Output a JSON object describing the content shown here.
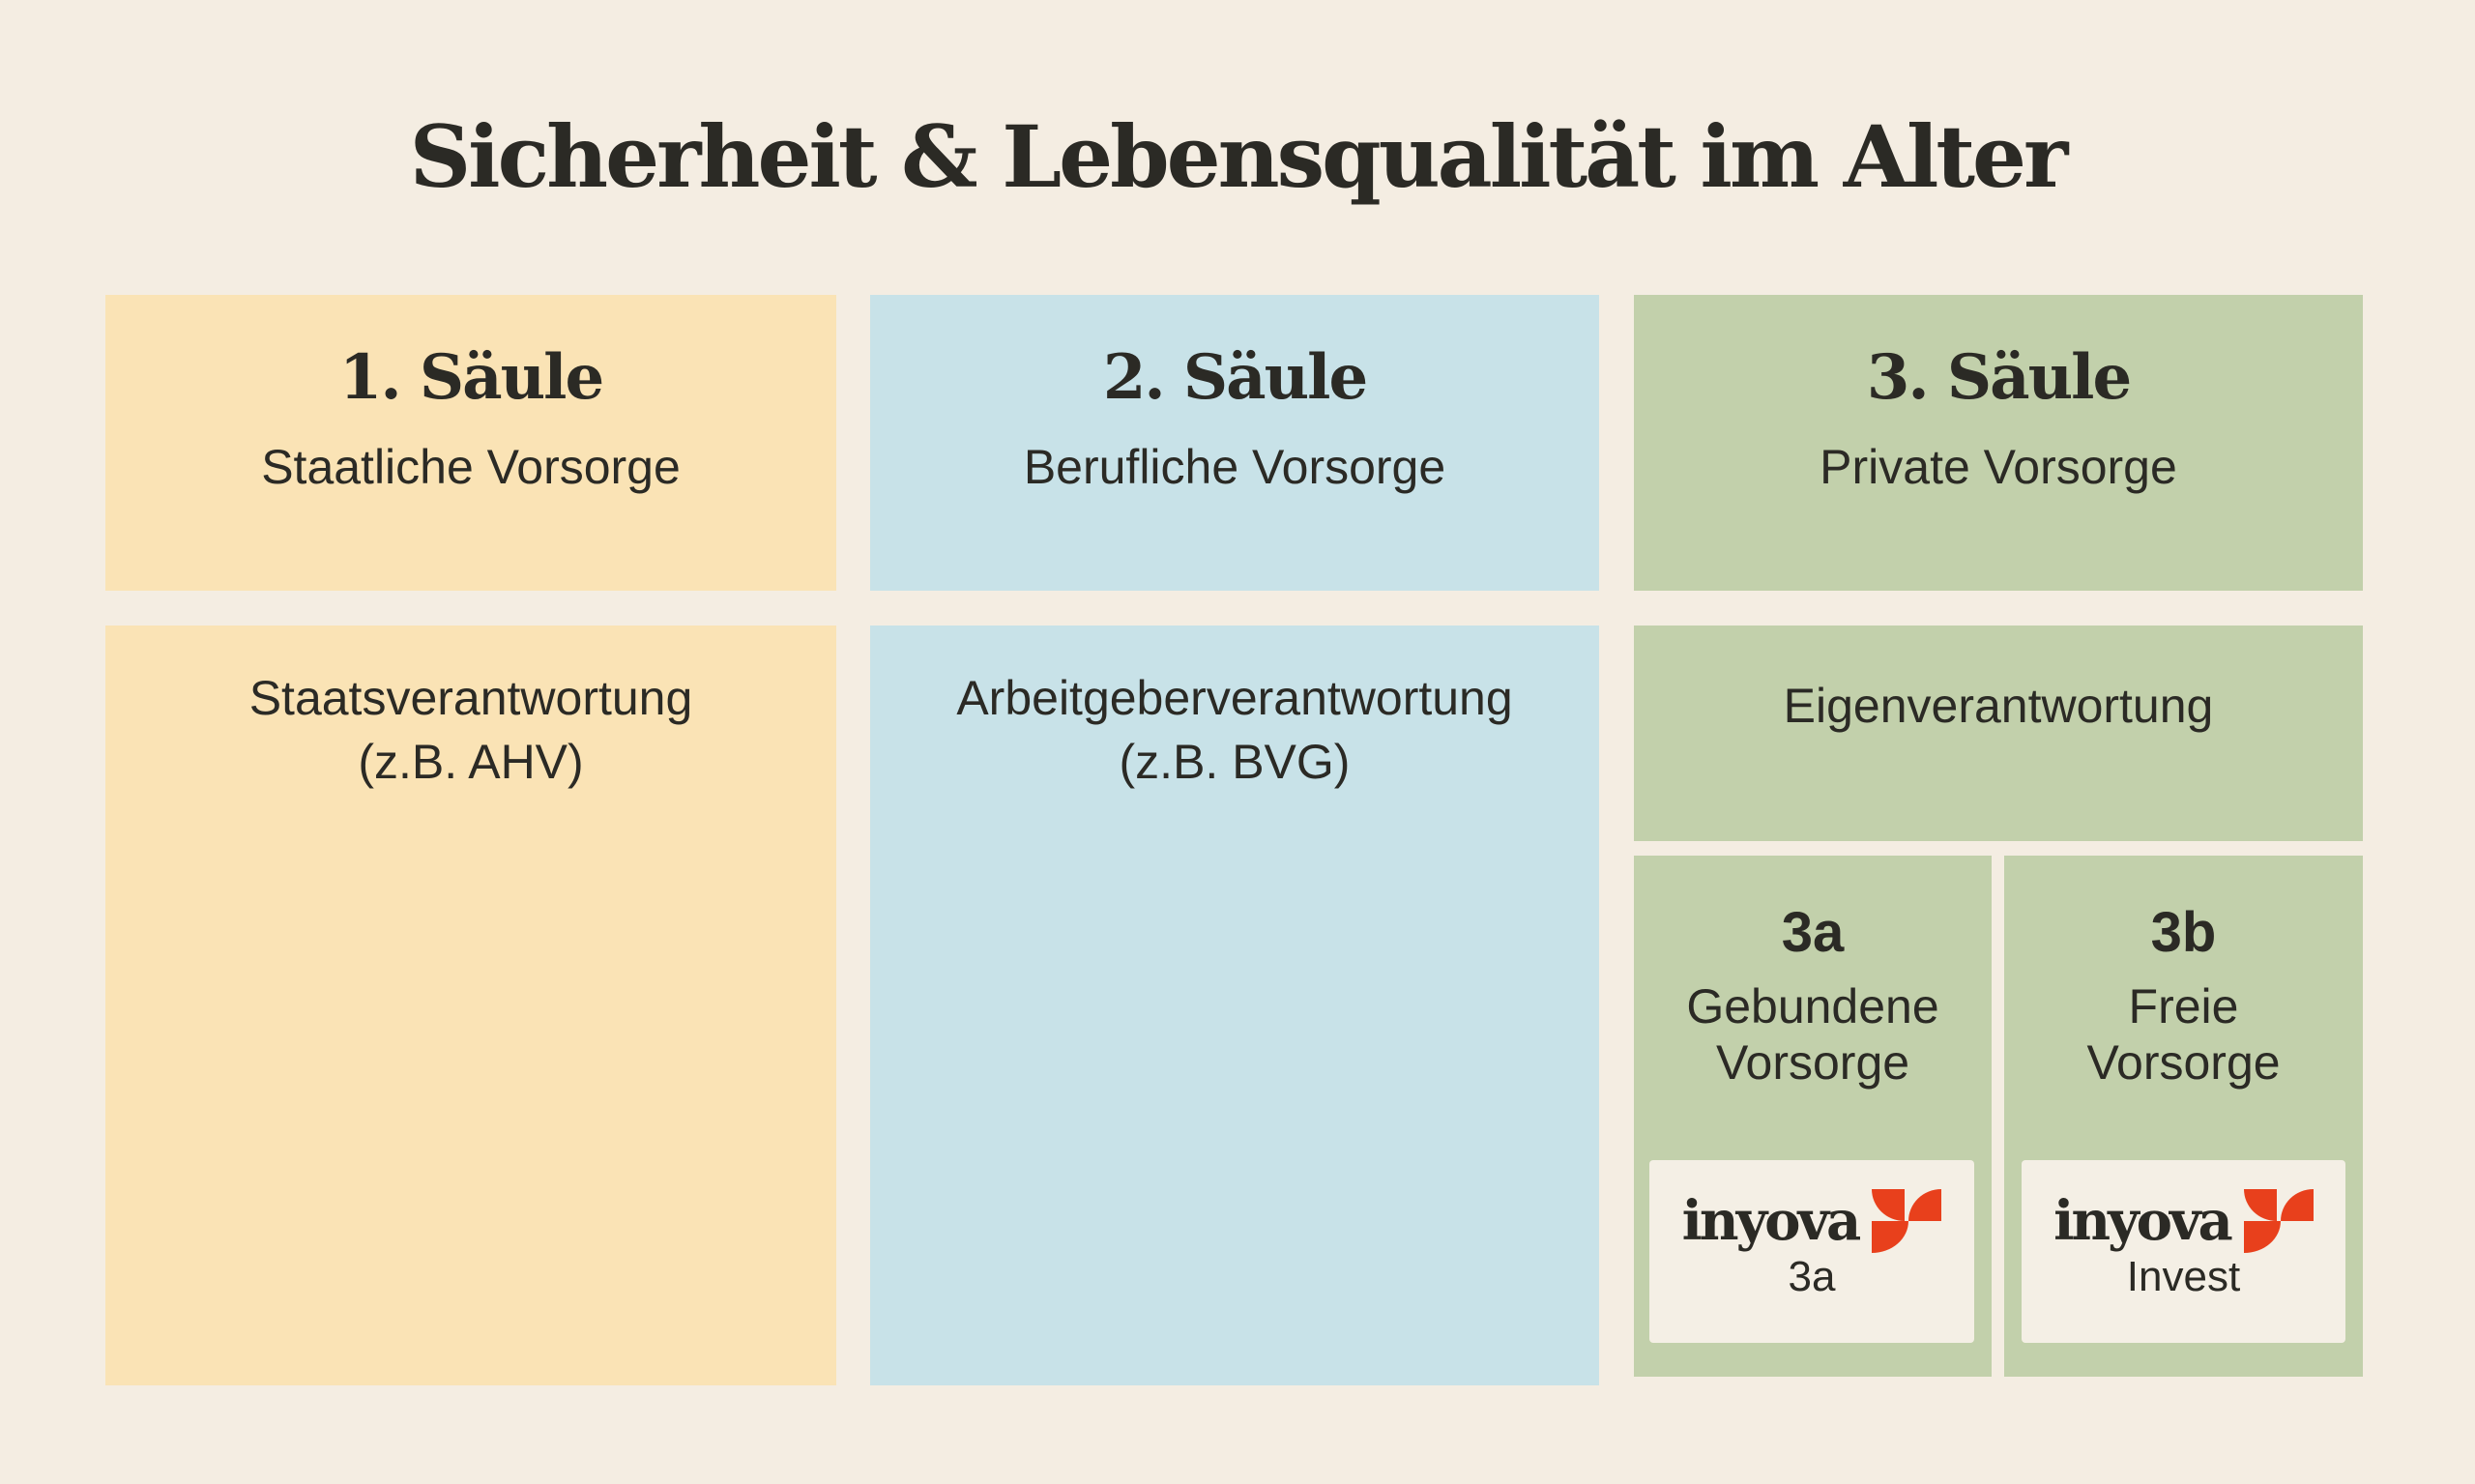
{
  "title": "Sicherheit & Lebensqualität im Alter",
  "pillars": [
    {
      "heading": "1. Säule",
      "subtitle": "Staatliche Vorsorge",
      "responsibility": "Staatsverantwortung",
      "example": "(z.B. AHV)",
      "color": "#fae3b5"
    },
    {
      "heading": "2. Säule",
      "subtitle": "Berufliche Vorsorge",
      "responsibility": "Arbeitgeberverantwortung",
      "example": "(z.B. BVG)",
      "color": "#c8e2e8"
    },
    {
      "heading": "3. Säule",
      "subtitle": "Private Vorsorge",
      "responsibility": "Eigenverantwortung",
      "color": "#c2d0ab",
      "sub_pillars": [
        {
          "code": "3a",
          "line1": "Gebundene",
          "line2": "Vorsorge",
          "brand": "inyova",
          "product": "3a"
        },
        {
          "code": "3b",
          "line1": "Freie",
          "line2": "Vorsorge",
          "brand": "inyova",
          "product": "Invest"
        }
      ]
    }
  ],
  "brand_color": "#e8401c",
  "logo_icon": "inyova-leaf-logo"
}
